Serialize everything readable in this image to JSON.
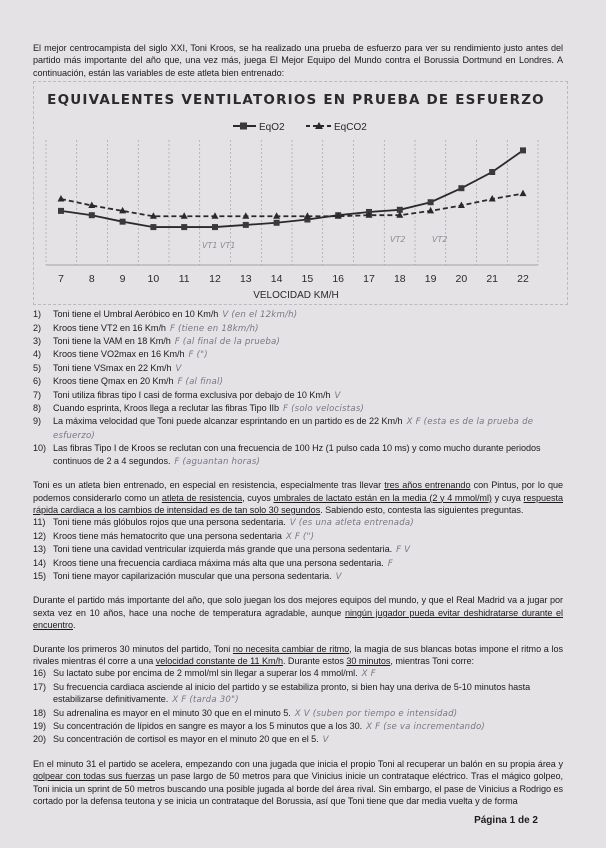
{
  "intro": "El mejor centrocampista del siglo XXI, Toni Kroos, se ha realizado una prueba de esfuerzo para ver su rendimiento justo antes del partido más importante del año que, una vez más, juega El Mejor Equipo del Mundo contra el Borussia Dortmund en Londres. A continuación, están las variables de este atleta bien entrenado:",
  "chart_data": {
    "type": "line",
    "title": "EQUIVALENTES VENTILATORIOS EN PRUEBA DE ESFUERZO",
    "xlabel": "VELOCIDAD KM/H",
    "ylabel": "",
    "x": [
      7,
      8,
      9,
      10,
      11,
      12,
      13,
      14,
      15,
      16,
      17,
      18,
      19,
      20,
      21,
      22
    ],
    "y_axis_labels_shown": false,
    "grid": "vertical dashed",
    "legend_position": "top",
    "series": [
      {
        "name": "EqO2",
        "style": "solid-square",
        "values": [
          39,
          35,
          29,
          24,
          24,
          24,
          26,
          28,
          31,
          35,
          38,
          40,
          47,
          60,
          75,
          95
        ]
      },
      {
        "name": "EqCO2",
        "style": "dashed-triangle",
        "values": [
          50,
          44,
          39,
          34,
          34,
          34,
          34,
          34,
          34,
          34,
          35,
          35,
          39,
          44,
          50,
          55
        ]
      }
    ],
    "handwritten_annotations": [
      "VT1 VT1",
      "VT2",
      "VT2"
    ],
    "color": "#2a2a2a"
  },
  "questions_a": [
    {
      "n": "1)",
      "text": "Toni tiene el Umbral Aeróbico en 10 Km/h",
      "answer": "V (en el 12km/h)"
    },
    {
      "n": "2)",
      "text": "Kroos tiene VT2 en 16 Km/h",
      "answer": "F (tiene en 18km/h)"
    },
    {
      "n": "3)",
      "text": "Toni tiene la VAM en 18 Km/h",
      "answer": "F (al final de la prueba)"
    },
    {
      "n": "4)",
      "text": "Kroos tiene VO2max en 16 Km/h",
      "answer": "F (\")"
    },
    {
      "n": "5)",
      "text": "Toni tiene VSmax en 22 Km/h",
      "answer": "V"
    },
    {
      "n": "6)",
      "text": "Kroos tiene Qmax en 20 Km/h",
      "answer": "F (al final)"
    },
    {
      "n": "7)",
      "text": "Toni utiliza fibras tipo I casi de forma exclusiva por debajo de 10 Km/h",
      "answer": "V"
    },
    {
      "n": "8)",
      "text": "Cuando esprinta, Kroos llega a reclutar las fibras Tipo IIb",
      "answer": "F (solo velocistas)"
    },
    {
      "n": "9)",
      "text": "La máxima velocidad que Toni puede alcanzar esprintando en un partido es de 22 Km/h",
      "answer": "X F (esta es de la prueba de esfuerzo)"
    },
    {
      "n": "10)",
      "text": "Las fibras Tipo I de Kroos se reclutan con una frecuencia de 100 Hz (1 pulso cada 10 ms) y como mucho durante periodos continuos de 2 a 4 segundos.",
      "answer": "F (aguantan horas)"
    }
  ],
  "para2": [
    {
      "t": "Toni es un atleta bien entrenado, en especial en resistencia, especialmente tras llevar ",
      "u": false
    },
    {
      "t": "tres años entrenando",
      "u": true
    },
    {
      "t": " con Pintus, por lo que podemos considerarlo como un ",
      "u": false
    },
    {
      "t": "atleta de resistencia",
      "u": true
    },
    {
      "t": ", cuyos ",
      "u": false
    },
    {
      "t": "umbrales de lactato están en la media (2 y 4 mmol/ml)",
      "u": true
    },
    {
      "t": " y cuya ",
      "u": false
    },
    {
      "t": "respuesta rápida cardiaca a los cambios de intensidad es de tan solo 30 segundos",
      "u": true
    },
    {
      "t": ". Sabiendo esto, contesta las siguientes preguntas.",
      "u": false
    }
  ],
  "questions_b": [
    {
      "n": "11)",
      "text": "Toni tiene más glóbulos rojos que una persona sedentaria.",
      "answer": "V (es una atleta entrenada)"
    },
    {
      "n": "12)",
      "text": "Kroos tiene más hematocrito que una persona sedentaria",
      "answer": "X F (\")"
    },
    {
      "n": "13)",
      "text": "Toni tiene una cavidad ventricular izquierda más grande que una persona sedentaria.",
      "answer": "F V"
    },
    {
      "n": "14)",
      "text": "Kroos tiene una frecuencia cardiaca máxima más alta que una persona sedentaria.",
      "answer": "F"
    },
    {
      "n": "15)",
      "text": "Toni tiene mayor capilarización muscular que una persona sedentaria.",
      "answer": "V"
    }
  ],
  "para3": [
    {
      "t": "Durante el partido más importante del año, que solo juegan los dos mejores equipos del mundo, y que el Real Madrid va a jugar por sexta vez en 10 años, hace una noche de temperatura agradable, aunque ",
      "u": false
    },
    {
      "t": "ningún jugador pueda evitar deshidratarse durante el encuentro",
      "u": true
    },
    {
      "t": ".",
      "u": false
    }
  ],
  "para4": [
    {
      "t": "Durante los primeros 30 minutos del partido, Toni ",
      "u": false
    },
    {
      "t": "no necesita cambiar de ritmo",
      "u": true
    },
    {
      "t": ", la magia de sus blancas botas impone el ritmo a los rivales mientras él corre a una ",
      "u": false
    },
    {
      "t": "velocidad constante de 11 Km/h",
      "u": true
    },
    {
      "t": ". Durante estos ",
      "u": false
    },
    {
      "t": "30 minutos",
      "u": true
    },
    {
      "t": ", mientras Toni corre:",
      "u": false
    }
  ],
  "questions_c": [
    {
      "n": "16)",
      "text": "Su lactato sube por encima de 2 mmol/ml sin llegar a superar los 4 mmol/ml.",
      "answer": "X F"
    },
    {
      "n": "17)",
      "text": "Su frecuencia cardiaca asciende al inicio del partido y se estabiliza pronto, si bien hay una deriva de 5-10 minutos hasta estabilizarse definitivamente.",
      "answer": "X F (tarda 30\")"
    },
    {
      "n": "18)",
      "text": "Su adrenalina es mayor en el minuto 30 que en el minuto 5.",
      "answer": "X V (suben por tiempo e intensidad)"
    },
    {
      "n": "19)",
      "text": "Su concentración de lípidos en sangre es mayor a los 5 minutos que a los 30.",
      "answer": "X F (se va incrementando)"
    },
    {
      "n": "20)",
      "text": "Su concentración de cortisol es mayor en el minuto 20 que en el 5.",
      "answer": "V"
    }
  ],
  "para5": [
    {
      "t": "En el minuto 31 el partido se acelera, empezando con una jugada que inicia el propio Toni al recuperar un balón en su propia área y ",
      "u": false
    },
    {
      "t": "golpear con todas sus fuerzas",
      "u": true
    },
    {
      "t": " un pase largo de 50 metros para que Vinicius inicie un contrataque eléctrico. Tras el mágico golpeo, Toni inicia un sprint de 50 metros buscando una posible jugada al borde del área rival. Sin embargo, el pase de Vinicius a Rodrigo es cortado por la defensa teutona y se inicia un contrataque del Borussia, así que Toni tiene que dar media vuelta y de forma",
      "u": false
    }
  ],
  "footer": "Página 1 de 2"
}
